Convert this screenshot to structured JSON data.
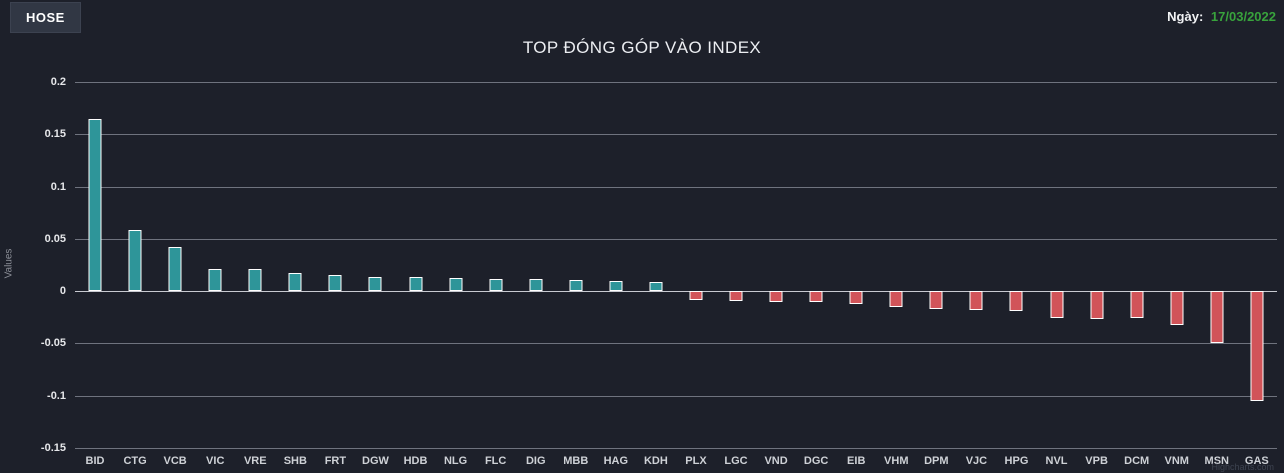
{
  "header": {
    "exchange_tab": "HOSE",
    "date_label": "Ngày:",
    "date_value": "17/03/2022",
    "date_color": "#38a23c"
  },
  "chart_data": {
    "type": "bar",
    "title": "TOP ĐÓNG GÓP VÀO INDEX",
    "xlabel": "",
    "ylabel": "Values",
    "ylim": [
      -0.15,
      0.2
    ],
    "grid": true,
    "legend_position": "none",
    "yticks": [
      {
        "value": 0.2,
        "label": "0.2"
      },
      {
        "value": 0.15,
        "label": "0.15"
      },
      {
        "value": 0.1,
        "label": "0.1"
      },
      {
        "value": 0.05,
        "label": "0.05"
      },
      {
        "value": 0,
        "label": "0"
      },
      {
        "value": -0.05,
        "label": "-0.05"
      },
      {
        "value": -0.1,
        "label": "-0.1"
      },
      {
        "value": -0.15,
        "label": "-0.15"
      }
    ],
    "categories": [
      "BID",
      "CTG",
      "VCB",
      "VIC",
      "VRE",
      "SHB",
      "FRT",
      "DGW",
      "HDB",
      "NLG",
      "FLC",
      "DIG",
      "MBB",
      "HAG",
      "KDH",
      "PLX",
      "LGC",
      "VND",
      "DGC",
      "EIB",
      "VHM",
      "DPM",
      "VJC",
      "HPG",
      "NVL",
      "VPB",
      "DCM",
      "VNM",
      "MSN",
      "GAS"
    ],
    "values": [
      0.165,
      0.058,
      0.042,
      0.021,
      0.021,
      0.017,
      0.015,
      0.014,
      0.014,
      0.013,
      0.012,
      0.012,
      0.011,
      0.01,
      0.009,
      -0.008,
      -0.009,
      -0.01,
      -0.01,
      -0.012,
      -0.015,
      -0.017,
      -0.018,
      -0.019,
      -0.026,
      -0.027,
      -0.026,
      -0.032,
      -0.05,
      -0.105
    ],
    "colors": {
      "positive": "#2e9599",
      "negative": "#d15459",
      "bar_border": "#ffffff",
      "background": "#1d202a",
      "gridline": "#6f737e",
      "zero_line": "#c8cad1"
    }
  },
  "credit": "Highcharts.com"
}
